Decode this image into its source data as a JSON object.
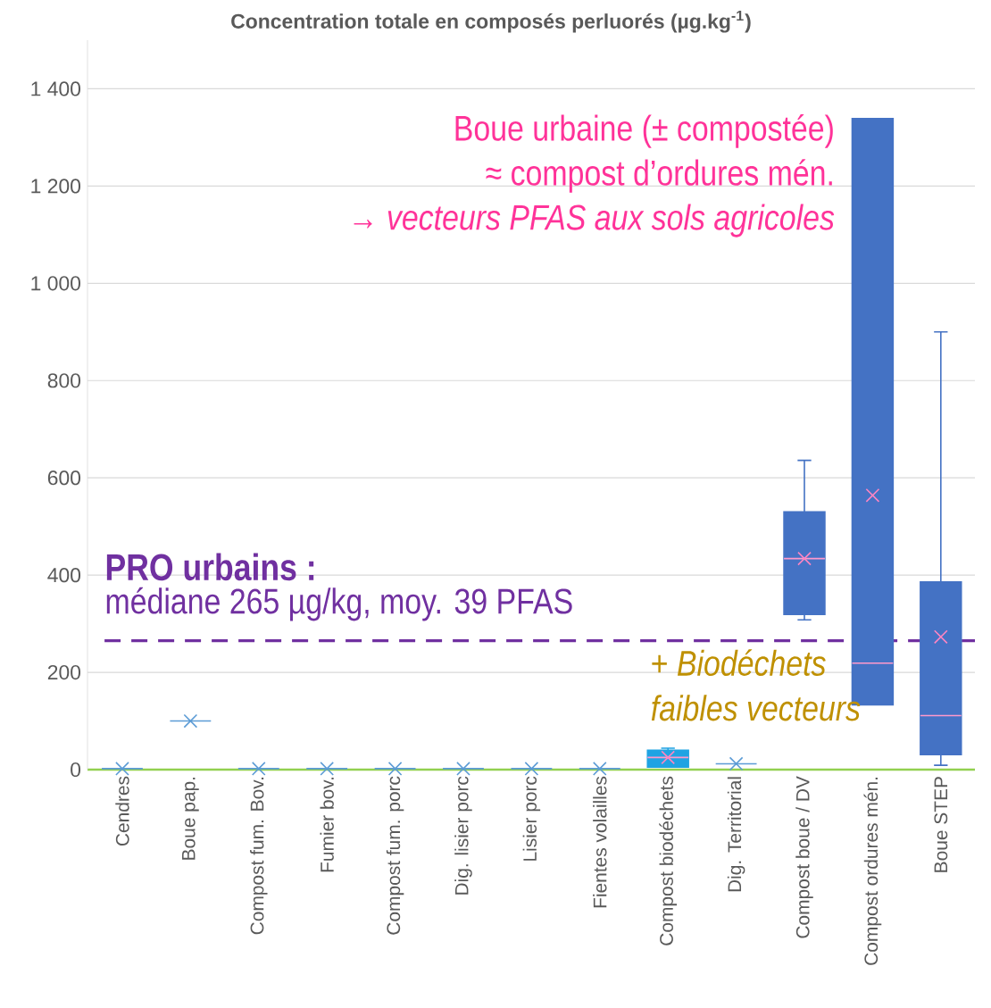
{
  "chart_data": {
    "type": "box",
    "title": "Concentration totale en composés perluorés (µg.kg$^{-1}$)",
    "categories": [
      "Cendres",
      "Boue pap.",
      "Compost fum. Bov.",
      "Fumier bov.",
      "Compost fum. porc",
      "Dig. lisier porc",
      "Lisier porc",
      "Fientes volailles",
      "Compost biodéchets",
      "Dig. Territorial",
      "Compost boue / DV",
      "Compost ordures mén.",
      "Boue STEP"
    ],
    "boxes": [
      {
        "low": 2,
        "q1": 2,
        "median": 2,
        "q3": 2,
        "high": 2,
        "mean": 2
      },
      {
        "low": 100,
        "q1": 100,
        "median": 100,
        "q3": 100,
        "high": 100,
        "mean": 100
      },
      {
        "low": 2,
        "q1": 2,
        "median": 2,
        "q3": 2,
        "high": 2,
        "mean": 2
      },
      {
        "low": 2,
        "q1": 2,
        "median": 2,
        "q3": 2,
        "high": 2,
        "mean": 2
      },
      {
        "low": 2,
        "q1": 2,
        "median": 2,
        "q3": 2,
        "high": 2,
        "mean": 2
      },
      {
        "low": 2,
        "q1": 2,
        "median": 2,
        "q3": 2,
        "high": 2,
        "mean": 2
      },
      {
        "low": 2,
        "q1": 2,
        "median": 2,
        "q3": 2,
        "high": 2,
        "mean": 2
      },
      {
        "low": 2,
        "q1": 2,
        "median": 2,
        "q3": 2,
        "high": 2,
        "mean": 2
      },
      {
        "low": 5,
        "q1": 5,
        "median": 25,
        "q3": 40,
        "high": 44,
        "mean": 25
      },
      {
        "low": 12,
        "q1": 12,
        "median": 12,
        "q3": 12,
        "high": 12,
        "mean": 12
      },
      {
        "low": 308,
        "q1": 319,
        "median": 434,
        "q3": 530,
        "high": 636,
        "mean": 434
      },
      {
        "low": 133,
        "q1": 133,
        "median": 219,
        "q3": 1339,
        "high": 1339,
        "mean": 564
      },
      {
        "low": 9,
        "q1": 31,
        "median": 111,
        "q3": 386,
        "high": 900,
        "mean": 273
      }
    ],
    "colors": [
      "#5b9bd5",
      "#5b9bd5",
      "#5b9bd5",
      "#5b9bd5",
      "#5b9bd5",
      "#5b9bd5",
      "#5b9bd5",
      "#5b9bd5",
      "#1fa3e3",
      "#5b9bd5",
      "#4472c4",
      "#4472c4",
      "#4472c4"
    ],
    "ylim": [
      0,
      1500
    ],
    "yticks": [
      0,
      200,
      400,
      600,
      800,
      {
        "value": 1000,
        "label": "1 000"
      },
      {
        "value": 1200,
        "label": "1 200"
      },
      {
        "value": 1400,
        "label": "1 400"
      }
    ],
    "grid": "y",
    "ref_lines": [
      {
        "axis": "y",
        "value": 265,
        "label": "médiane 265 µg/kg, moy. 39 PFAS",
        "color": "#7030a0",
        "line_style": "dashed"
      }
    ],
    "annotations": [
      "Boue urbaine (± compostée)",
      "≈ compost d’ordures mén.",
      "→ *vecteurs PFAS aux sols agricoles*",
      "**PRO urbains :**",
      "+ *Biodéchets*",
      "*faibles vecteurs*"
    ]
  }
}
